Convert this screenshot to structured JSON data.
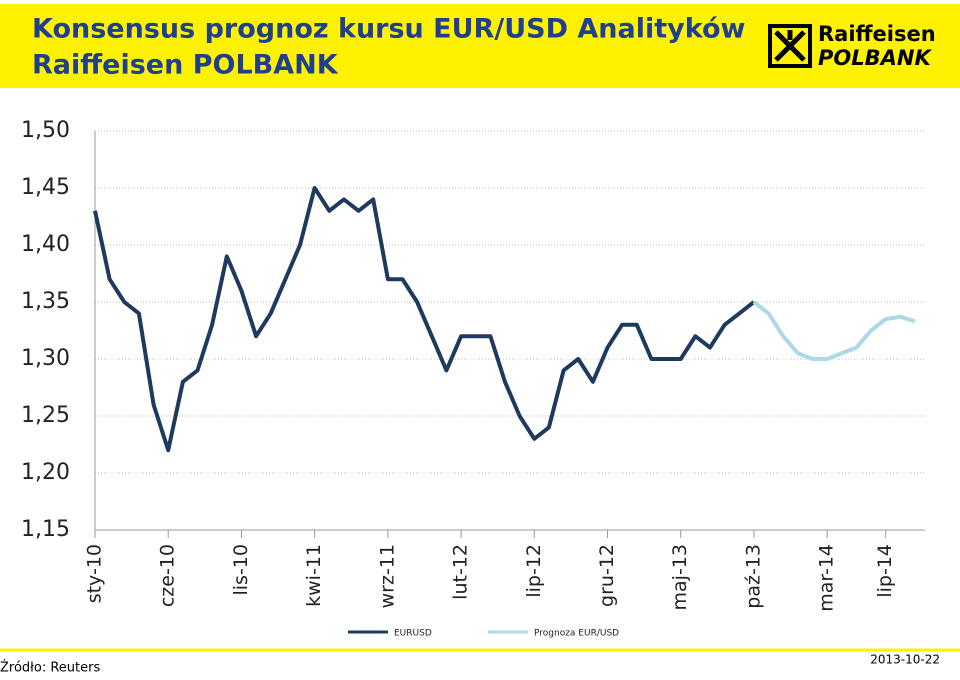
{
  "header": {
    "title_line1": "Konsensus prognoz kursu EUR/USD Analityków",
    "title_line2": "Raiffeisen POLBANK",
    "logo_line1": "Raiffeisen",
    "logo_line2": "POLBANK"
  },
  "footer": {
    "source": "Źródło: Reuters",
    "date": "2013-10-22"
  },
  "chart_data": {
    "type": "line",
    "categories": [
      "sty-10",
      null,
      null,
      null,
      null,
      "cze-10",
      null,
      null,
      null,
      null,
      "lis-10",
      null,
      null,
      null,
      null,
      "kwi-11",
      null,
      null,
      null,
      null,
      "wrz-11",
      null,
      null,
      null,
      null,
      "lut-12",
      null,
      null,
      null,
      null,
      "lip-12",
      null,
      null,
      null,
      null,
      "gru-12",
      null,
      null,
      null,
      null,
      "maj-13",
      null,
      null,
      null,
      null,
      "paź-13",
      null,
      null,
      null,
      null,
      "mar-14",
      null,
      null,
      null,
      "lip-14",
      null,
      null
    ],
    "series": [
      {
        "name": "EURUSD",
        "color": "#1f3a5f",
        "values": [
          1.43,
          1.37,
          1.35,
          1.34,
          1.26,
          1.22,
          1.28,
          1.29,
          1.33,
          1.39,
          1.36,
          1.32,
          1.34,
          1.37,
          1.4,
          1.45,
          1.43,
          1.44,
          1.43,
          1.44,
          1.37,
          1.37,
          1.35,
          1.32,
          1.29,
          1.32,
          1.32,
          1.32,
          1.28,
          1.25,
          1.23,
          1.24,
          1.29,
          1.3,
          1.28,
          1.31,
          1.33,
          1.33,
          1.3,
          1.3,
          1.3,
          1.32,
          1.31,
          1.33,
          1.34,
          1.35,
          null,
          null,
          null,
          null,
          null,
          null,
          null,
          null,
          null,
          null,
          null
        ]
      },
      {
        "name": "Prognoza EUR/USD",
        "color": "#add8e6",
        "values": [
          null,
          null,
          null,
          null,
          null,
          null,
          null,
          null,
          null,
          null,
          null,
          null,
          null,
          null,
          null,
          null,
          null,
          null,
          null,
          null,
          null,
          null,
          null,
          null,
          null,
          null,
          null,
          null,
          null,
          null,
          null,
          null,
          null,
          null,
          null,
          null,
          null,
          null,
          null,
          null,
          null,
          null,
          null,
          null,
          null,
          1.35,
          1.34,
          1.32,
          1.305,
          1.3,
          1.3,
          1.305,
          1.31,
          1.325,
          1.335,
          1.337,
          1.333
        ]
      }
    ],
    "ylim": [
      1.15,
      1.5
    ],
    "yticks": [
      {
        "value": 1.15,
        "label": "1,15"
      },
      {
        "value": 1.2,
        "label": "1,20"
      },
      {
        "value": 1.25,
        "label": "1,25"
      },
      {
        "value": 1.3,
        "label": "1,30"
      },
      {
        "value": 1.35,
        "label": "1,35"
      },
      {
        "value": 1.4,
        "label": "1,40"
      },
      {
        "value": 1.45,
        "label": "1,45"
      },
      {
        "value": 1.5,
        "label": "1,50"
      }
    ],
    "grid": true,
    "legend": "bottom"
  }
}
